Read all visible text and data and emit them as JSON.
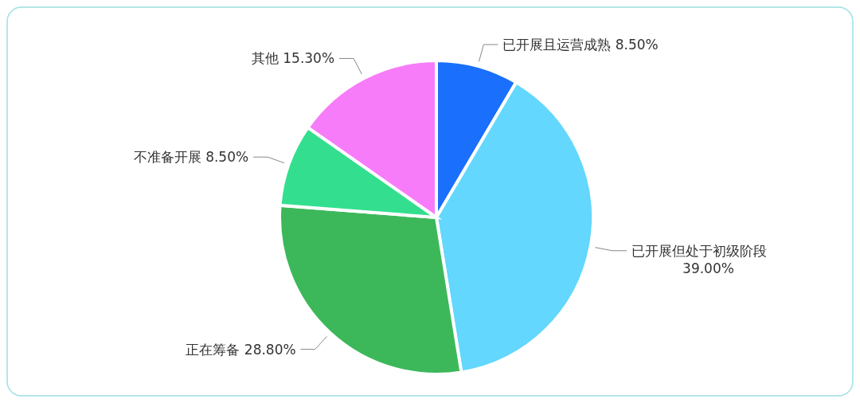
{
  "chart_data": {
    "type": "pie",
    "categories": [
      "已开展且运营成熟",
      "已开展但处于初级阶段",
      "正在筹备",
      "不准备开展",
      "其他"
    ],
    "values": [
      8.5,
      39.0,
      28.8,
      8.5,
      15.3
    ],
    "colors": [
      "#1a6ffc",
      "#63d7fd",
      "#3cb85a",
      "#33df8f",
      "#f77cf9"
    ],
    "value_labels": [
      "8.50%",
      "39.00%",
      "28.80%",
      "8.50%",
      "15.30%"
    ]
  }
}
